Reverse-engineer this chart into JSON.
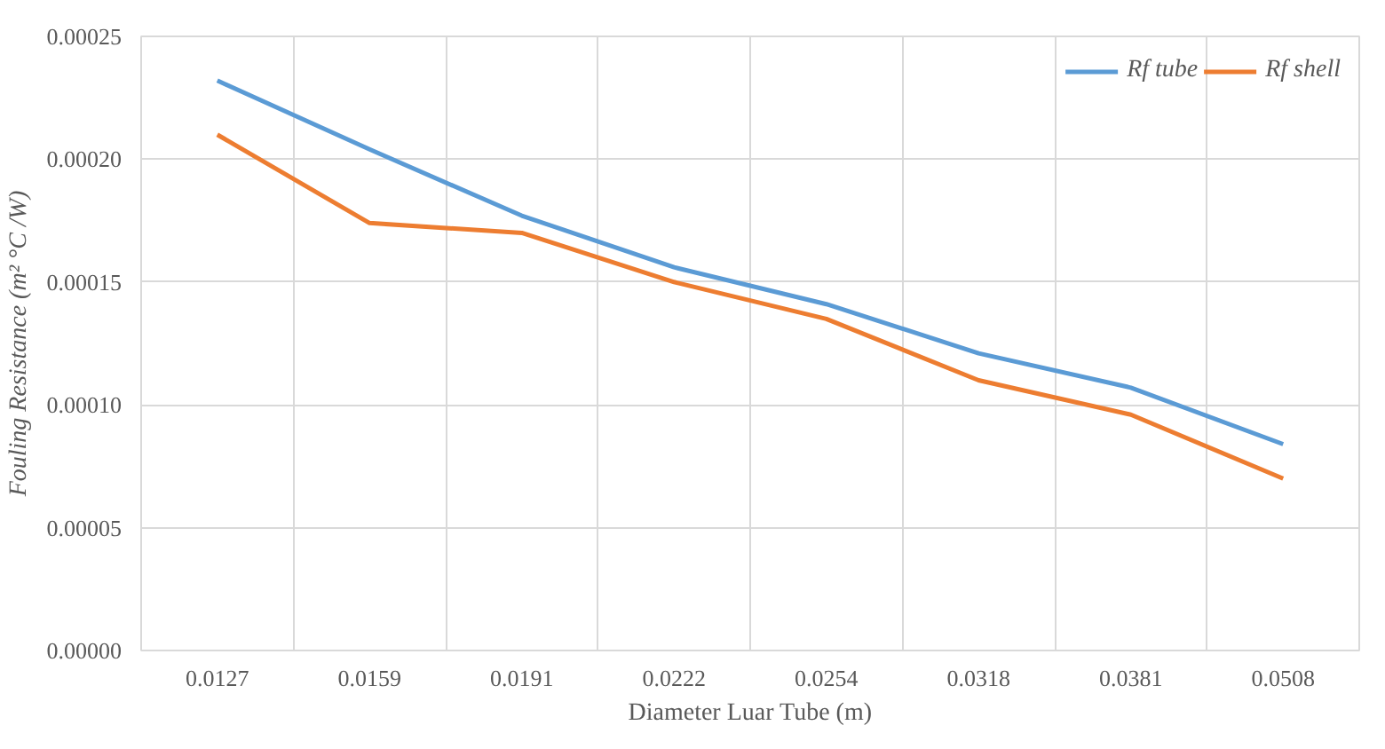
{
  "chart_data": {
    "type": "line",
    "xlabel": "Diameter Luar Tube (m)",
    "ylabel": "Fouling Resistance (m² °C /W)",
    "categories": [
      "0.0127",
      "0.0159",
      "0.0191",
      "0.0222",
      "0.0254",
      "0.0318",
      "0.0381",
      "0.0508"
    ],
    "series": [
      {
        "name": "Rf tube",
        "color": "#5b9bd5",
        "values": [
          0.000232,
          0.000204,
          0.000177,
          0.000156,
          0.000141,
          0.000121,
          0.000107,
          8.4e-05
        ]
      },
      {
        "name": "Rf shell",
        "color": "#ed7d31",
        "values": [
          0.00021,
          0.000174,
          0.00017,
          0.00015,
          0.000135,
          0.00011,
          9.6e-05,
          7e-05
        ]
      }
    ],
    "ylim": [
      0,
      0.00025
    ],
    "yticks": [
      {
        "value": 0,
        "label": "0.00000"
      },
      {
        "value": 5e-05,
        "label": "0.00005"
      },
      {
        "value": 0.0001,
        "label": "0.00010"
      },
      {
        "value": 0.00015,
        "label": "0.00015"
      },
      {
        "value": 0.0002,
        "label": "0.00020"
      },
      {
        "value": 0.00025,
        "label": "0.00025"
      }
    ],
    "grid": true,
    "legend": "top right",
    "marker": "none",
    "line_style": "solid"
  }
}
